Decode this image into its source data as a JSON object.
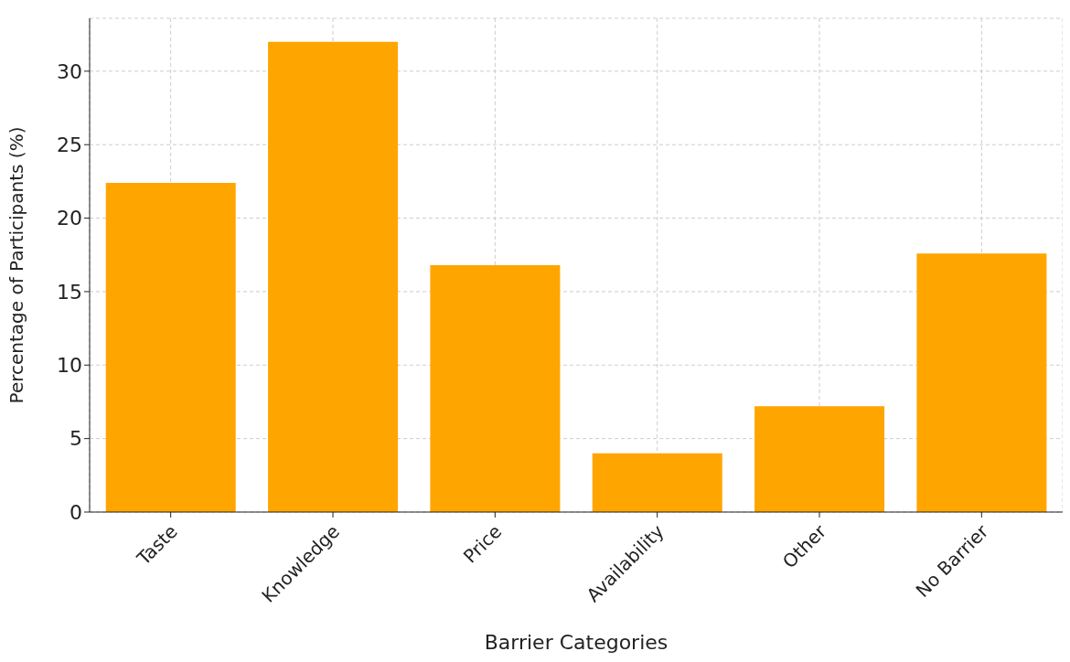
{
  "chart_data": {
    "type": "bar",
    "xlabel": "Barrier Categories",
    "ylabel": "Percentage of Participants (%)",
    "categories": [
      "Taste",
      "Knowledge",
      "Price",
      "Availability",
      "Other",
      "No Barrier"
    ],
    "values": [
      22.4,
      32.0,
      16.8,
      4.0,
      7.2,
      17.6
    ],
    "color": "#ffa500",
    "ylim": [
      0,
      33.6
    ],
    "yticks": [
      0,
      5,
      10,
      15,
      20,
      25,
      30
    ],
    "grid": true
  }
}
